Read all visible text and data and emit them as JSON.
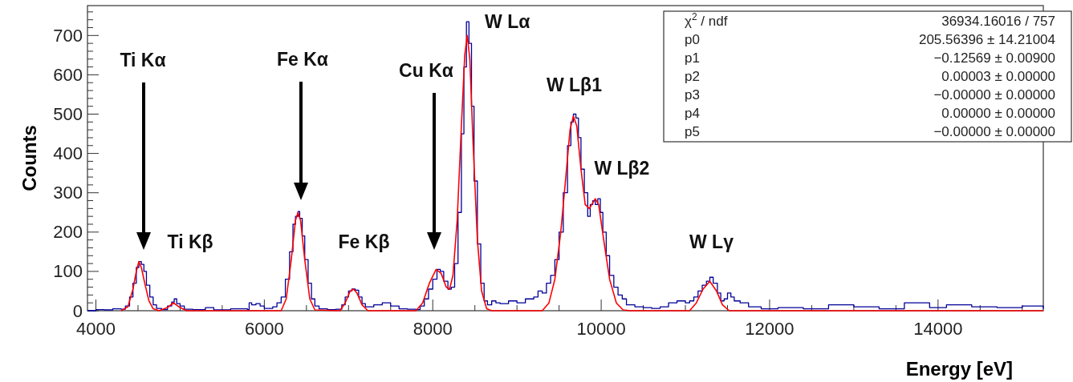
{
  "chart_data": {
    "type": "step",
    "xlabel": "Energy [eV]",
    "ylabel": "Counts",
    "xlim": [
      3900,
      15250
    ],
    "ylim": [
      0,
      776
    ],
    "xticks": [
      4000,
      {
        "value": 4500,
        "label": null
      },
      {
        "value": 5000,
        "label": null
      },
      {
        "value": 5500,
        "label": null
      },
      6000,
      {
        "value": 6500,
        "label": null
      },
      {
        "value": 7000,
        "label": null
      },
      {
        "value": 7500,
        "label": null
      },
      8000,
      {
        "value": 8500,
        "label": null
      },
      {
        "value": 9000,
        "label": null
      },
      {
        "value": 9500,
        "label": null
      },
      10000,
      {
        "value": 10500,
        "label": null
      },
      {
        "value": 11000,
        "label": null
      },
      {
        "value": 11500,
        "label": null
      },
      12000,
      {
        "value": 12500,
        "label": null
      },
      {
        "value": 13000,
        "label": null
      },
      {
        "value": 13500,
        "label": null
      },
      14000,
      {
        "value": 14500,
        "label": null
      },
      {
        "value": 15000,
        "label": null
      }
    ],
    "yticks": [
      0,
      {
        "value": 20,
        "label": null
      },
      {
        "value": 40,
        "label": null
      },
      {
        "value": 60,
        "label": null
      },
      {
        "value": 80,
        "label": null
      },
      100,
      {
        "value": 120,
        "label": null
      },
      {
        "value": 140,
        "label": null
      },
      {
        "value": 160,
        "label": null
      },
      {
        "value": 180,
        "label": null
      },
      200,
      {
        "value": 220,
        "label": null
      },
      {
        "value": 240,
        "label": null
      },
      {
        "value": 260,
        "label": null
      },
      {
        "value": 280,
        "label": null
      },
      300,
      {
        "value": 320,
        "label": null
      },
      {
        "value": 340,
        "label": null
      },
      {
        "value": 360,
        "label": null
      },
      {
        "value": 380,
        "label": null
      },
      400,
      {
        "value": 420,
        "label": null
      },
      {
        "value": 440,
        "label": null
      },
      {
        "value": 460,
        "label": null
      },
      {
        "value": 480,
        "label": null
      },
      500,
      {
        "value": 520,
        "label": null
      },
      {
        "value": 540,
        "label": null
      },
      {
        "value": 560,
        "label": null
      },
      {
        "value": 580,
        "label": null
      },
      600,
      {
        "value": 620,
        "label": null
      },
      {
        "value": 640,
        "label": null
      },
      {
        "value": 660,
        "label": null
      },
      {
        "value": 680,
        "label": null
      },
      700,
      {
        "value": 720,
        "label": null
      },
      {
        "value": 740,
        "label": null
      },
      {
        "value": 760,
        "label": null
      }
    ],
    "series": [
      {
        "color": "#000099",
        "x": [
          3900,
          4000,
          4100,
          4200,
          4300,
          4350,
          4400,
          4440,
          4480,
          4510,
          4540,
          4570,
          4600,
          4640,
          4680,
          4720,
          4780,
          4850,
          4900,
          4930,
          4960,
          5000,
          5050,
          5150,
          5300,
          5400,
          5600,
          5800,
          5820,
          5850,
          5900,
          5950,
          6000,
          6100,
          6150,
          6200,
          6250,
          6300,
          6340,
          6370,
          6400,
          6420,
          6450,
          6480,
          6520,
          6560,
          6600,
          6650,
          6750,
          6850,
          6920,
          6960,
          7000,
          7040,
          7080,
          7120,
          7160,
          7200,
          7300,
          7400,
          7500,
          7600,
          7700,
          7800,
          7850,
          7900,
          7950,
          8000,
          8050,
          8090,
          8130,
          8180,
          8220,
          8260,
          8300,
          8340,
          8370,
          8400,
          8430,
          8460,
          8490,
          8530,
          8570,
          8610,
          8650,
          8700,
          8750,
          8800,
          8900,
          9000,
          9100,
          9200,
          9250,
          9300,
          9350,
          9400,
          9450,
          9500,
          9550,
          9600,
          9640,
          9670,
          9700,
          9730,
          9760,
          9800,
          9840,
          9870,
          9900,
          9930,
          9960,
          9990,
          10020,
          10060,
          10100,
          10150,
          10200,
          10250,
          10300,
          10400,
          10500,
          10600,
          10700,
          10800,
          10900,
          11000,
          11050,
          11100,
          11150,
          11200,
          11250,
          11290,
          11330,
          11380,
          11420,
          11460,
          11500,
          11540,
          11580,
          11650,
          11750,
          11900,
          12100,
          12400,
          12700,
          13000,
          13300,
          13600,
          13900,
          14100,
          14400,
          14700,
          15000,
          15250
        ],
        "values": [
          0,
          3,
          2,
          5,
          4,
          12,
          35,
          70,
          110,
          125,
          118,
          100,
          65,
          35,
          15,
          6,
          3,
          12,
          22,
          30,
          18,
          12,
          4,
          3,
          8,
          2,
          5,
          3,
          20,
          15,
          18,
          12,
          6,
          10,
          20,
          35,
          80,
          150,
          220,
          240,
          252,
          235,
          190,
          130,
          70,
          30,
          12,
          5,
          3,
          4,
          15,
          35,
          50,
          55,
          52,
          35,
          18,
          10,
          15,
          20,
          12,
          5,
          4,
          3,
          12,
          30,
          55,
          80,
          105,
          100,
          75,
          55,
          60,
          120,
          250,
          450,
          620,
          735,
          680,
          520,
          330,
          170,
          70,
          25,
          15,
          25,
          20,
          18,
          25,
          20,
          30,
          35,
          50,
          45,
          70,
          90,
          130,
          200,
          300,
          420,
          480,
          500,
          490,
          440,
          360,
          300,
          240,
          270,
          280,
          270,
          285,
          250,
          200,
          140,
          90,
          60,
          40,
          30,
          15,
          10,
          8,
          6,
          10,
          20,
          25,
          20,
          25,
          35,
          50,
          65,
          75,
          85,
          70,
          45,
          25,
          30,
          45,
          35,
          25,
          20,
          10,
          5,
          8,
          5,
          15,
          10,
          5,
          20,
          8,
          15,
          10,
          8,
          12,
          5
        ]
      },
      {
        "type": "line",
        "color": "#ff0000",
        "x": [
          4300,
          4380,
          4440,
          4480,
          4510,
          4540,
          4580,
          4630,
          4680,
          4750,
          4850,
          4920,
          5000,
          5080,
          6200,
          6260,
          6320,
          6370,
          6400,
          6430,
          6480,
          6540,
          6600,
          6900,
          6960,
          7020,
          7060,
          7100,
          7160,
          7230,
          7800,
          7880,
          7960,
          8040,
          8100,
          8160,
          8200,
          8240,
          8290,
          8340,
          8380,
          8410,
          8440,
          8480,
          8530,
          8580,
          8640,
          8700,
          9300,
          9380,
          9450,
          9520,
          9580,
          9630,
          9670,
          9710,
          9760,
          9810,
          9860,
          9930,
          9970,
          10030,
          10100,
          10180,
          10260,
          10350,
          11050,
          11130,
          11210,
          11290,
          11370,
          11440,
          11520,
          15250
        ],
        "values": [
          0,
          10,
          55,
          100,
          125,
          110,
          70,
          25,
          5,
          0,
          8,
          20,
          8,
          0,
          0,
          30,
          130,
          230,
          250,
          230,
          130,
          30,
          2,
          0,
          20,
          50,
          55,
          45,
          15,
          0,
          0,
          20,
          70,
          105,
          95,
          60,
          55,
          90,
          230,
          470,
          650,
          700,
          640,
          420,
          180,
          50,
          5,
          0,
          0,
          20,
          80,
          200,
          340,
          460,
          495,
          470,
          360,
          270,
          260,
          285,
          270,
          180,
          80,
          20,
          2,
          0,
          0,
          20,
          55,
          75,
          50,
          15,
          0,
          0
        ]
      }
    ],
    "annotations": [
      {
        "text": "Ti Kβ",
        "x": 4930,
        "y": 30
      },
      {
        "text": "Fe Kβ",
        "x": 7040,
        "y": 55
      },
      {
        "text": "W Lα",
        "x": 8400,
        "y": 735
      },
      {
        "text": "W Lβ1",
        "x": 9670,
        "y": 500
      },
      {
        "text": "W Lβ2",
        "x": 9960,
        "y": 285
      },
      {
        "text": "W Lγ",
        "x": 11290,
        "y": 85
      },
      "Ti Kα",
      "Fe Kα",
      "Cu Kα",
      "χ$^{2}$ / ndf",
      "36934.16016 / 757",
      "p0",
      "205.56396 ± 14.21004",
      "p1",
      "−0.12569 ± 0.00900",
      "p2",
      "0.00003 ± 0.00000",
      "p3",
      "−0.00000 ± 0.00000",
      "p4",
      "0.00000 ± 0.00000",
      "p5",
      "−0.00000 ± 0.00000"
    ]
  }
}
